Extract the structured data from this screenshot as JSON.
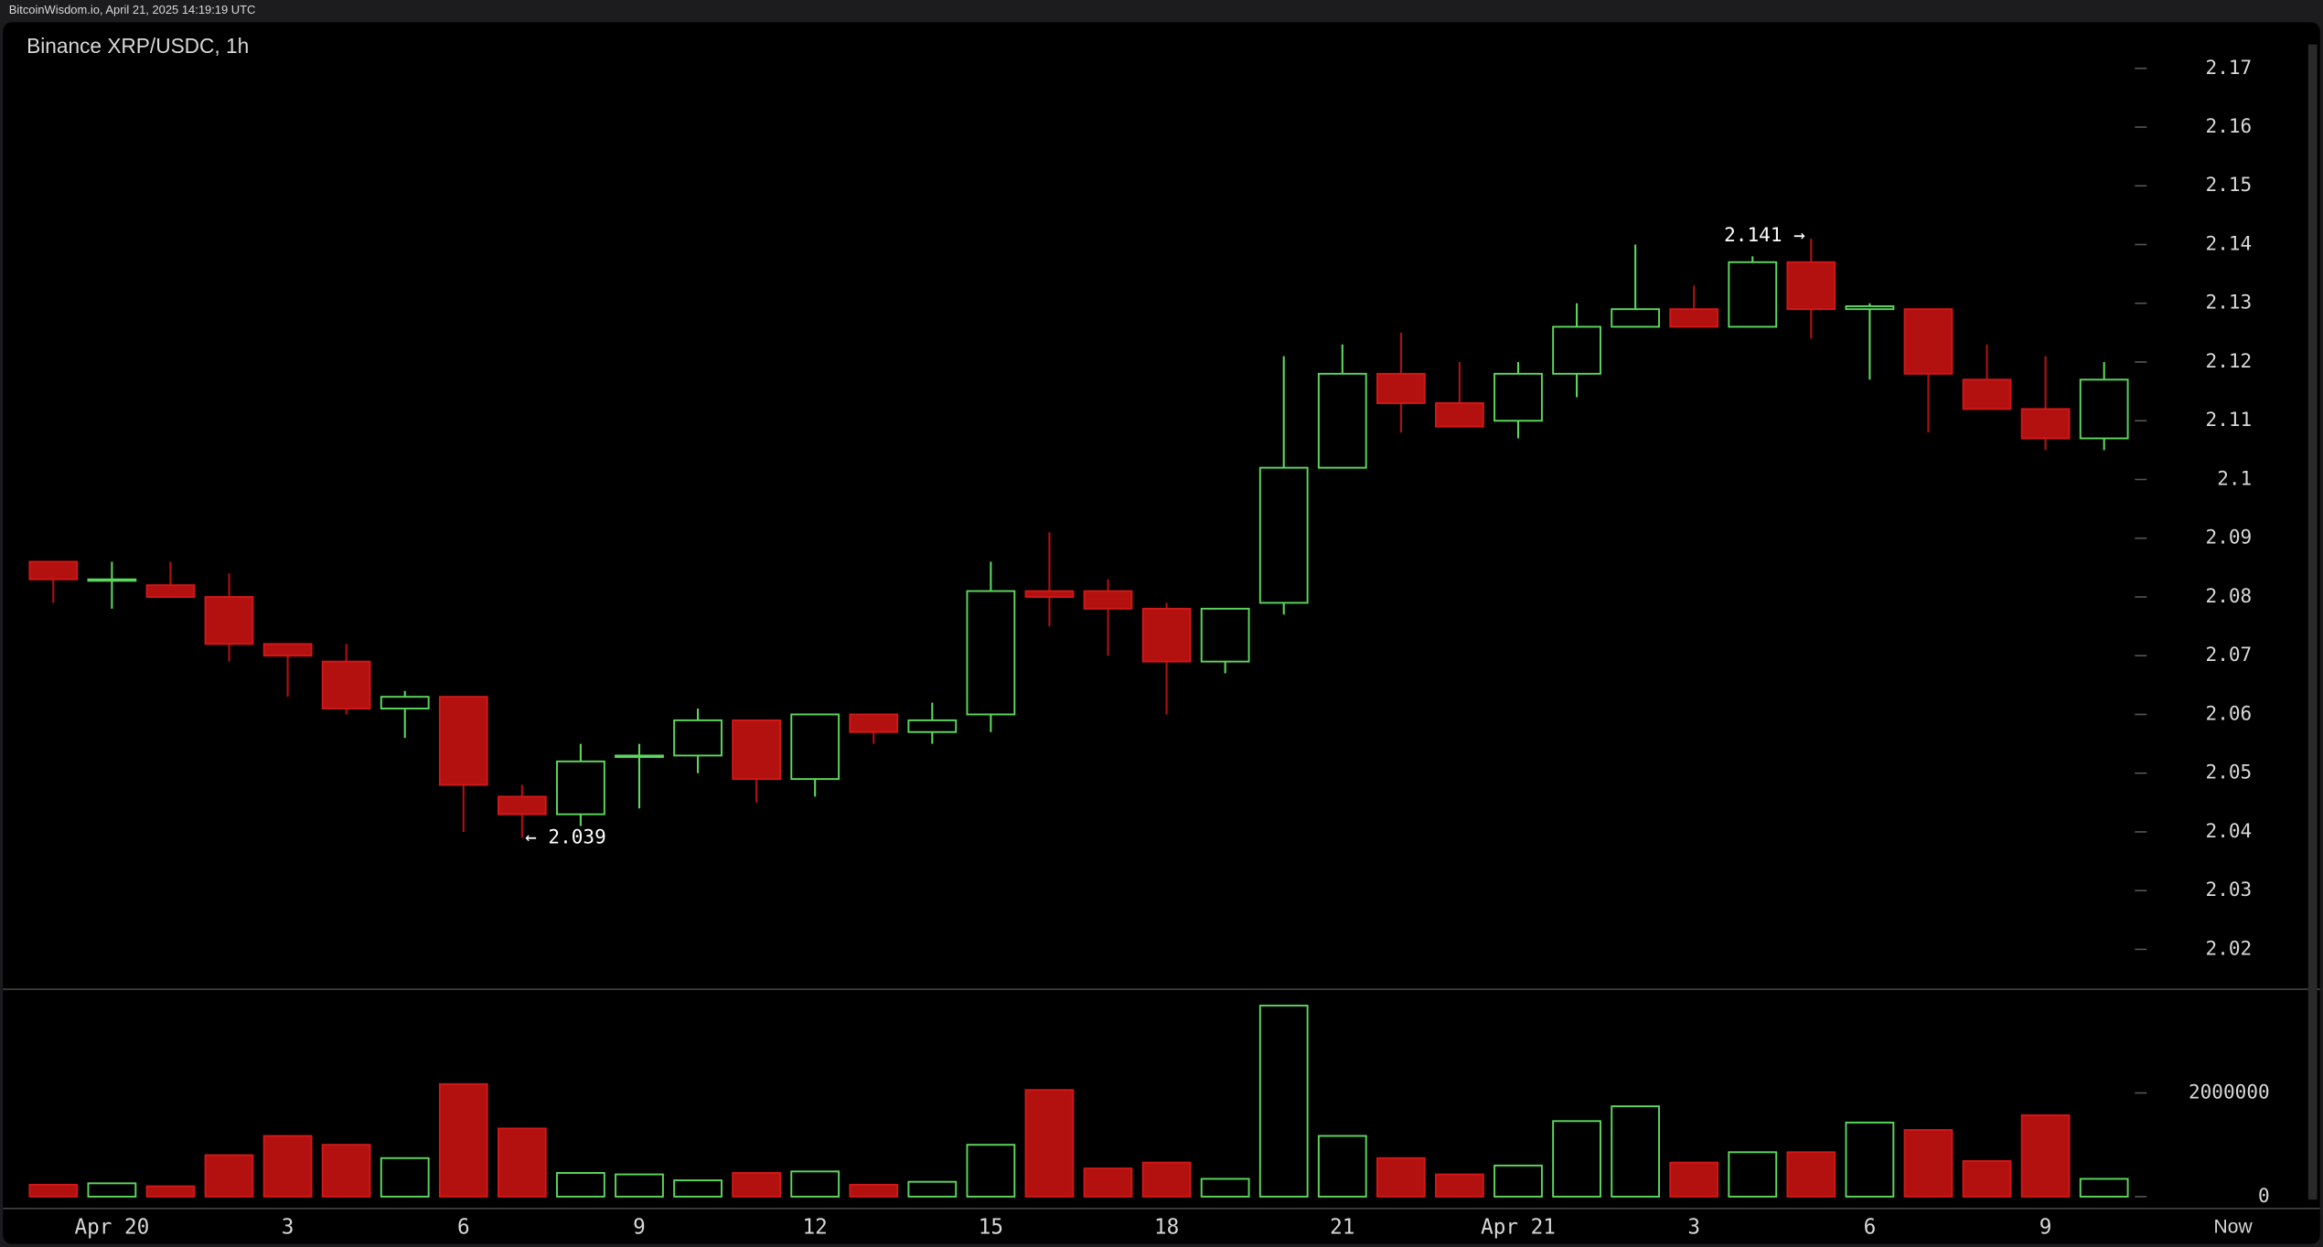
{
  "header": {
    "source": "BitcoinWisdom.io, April 21, 2025 14:19:19 UTC"
  },
  "chart_data": {
    "type": "candlestick",
    "title": "Binance XRP/USDC, 1h",
    "categories": [
      null,
      "Apr 20",
      null,
      null,
      "3",
      null,
      null,
      "6",
      null,
      null,
      "9",
      null,
      null,
      "12",
      null,
      null,
      "15",
      null,
      null,
      "18",
      null,
      null,
      "21",
      null,
      null,
      "Apr 21",
      null,
      null,
      "3",
      null,
      null,
      "6",
      null,
      null,
      "9",
      null
    ],
    "now_label": "Now",
    "open": [
      2.086,
      2.083,
      2.082,
      2.08,
      2.072,
      2.069,
      2.061,
      2.063,
      2.046,
      2.043,
      2.053,
      2.053,
      2.059,
      2.049,
      2.06,
      2.057,
      2.06,
      2.081,
      2.081,
      2.078,
      2.069,
      2.079,
      2.102,
      2.118,
      2.113,
      2.11,
      2.118,
      2.126,
      2.129,
      2.126,
      2.137,
      2.129,
      2.129,
      2.117,
      2.112,
      2.107
    ],
    "high": [
      2.086,
      2.086,
      2.086,
      2.084,
      2.072,
      2.072,
      2.064,
      2.063,
      2.048,
      2.055,
      2.055,
      2.061,
      2.059,
      2.06,
      2.06,
      2.062,
      2.086,
      2.091,
      2.083,
      2.079,
      2.078,
      2.121,
      2.123,
      2.125,
      2.12,
      2.12,
      2.13,
      2.14,
      2.133,
      2.138,
      2.141,
      2.13,
      2.129,
      2.123,
      2.121,
      2.12
    ],
    "low": [
      2.079,
      2.078,
      2.08,
      2.069,
      2.063,
      2.06,
      2.056,
      2.04,
      2.039,
      2.041,
      2.044,
      2.05,
      2.045,
      2.046,
      2.055,
      2.055,
      2.057,
      2.075,
      2.07,
      2.06,
      2.067,
      2.077,
      2.102,
      2.108,
      2.109,
      2.107,
      2.114,
      2.126,
      2.126,
      2.126,
      2.124,
      2.117,
      2.108,
      2.112,
      2.105,
      2.105
    ],
    "close": [
      2.083,
      2.083,
      2.08,
      2.072,
      2.07,
      2.061,
      2.063,
      2.048,
      2.043,
      2.052,
      2.053,
      2.059,
      2.049,
      2.06,
      2.057,
      2.059,
      2.081,
      2.08,
      2.078,
      2.069,
      2.078,
      2.102,
      2.118,
      2.113,
      2.109,
      2.118,
      2.126,
      2.129,
      2.126,
      2.137,
      2.129,
      2.1295,
      2.118,
      2.112,
      2.107,
      2.117
    ],
    "volume": [
      229000,
      257000,
      200000,
      800000,
      1171000,
      1000000,
      743000,
      2171000,
      1314000,
      457000,
      429000,
      314000,
      457000,
      486000,
      229000,
      286000,
      1000000,
      2057000,
      543000,
      657000,
      343000,
      3686000,
      1171000,
      743000,
      429000,
      600000,
      1457000,
      1743000,
      657000,
      857000,
      857000,
      1429000,
      1286000,
      686000,
      1571000,
      343000
    ],
    "annotations": [
      "← 2.039",
      "2.141 →"
    ],
    "ylim": [
      2.0132,
      2.1776
    ],
    "yticks": [
      2.02,
      2.03,
      2.04,
      2.05,
      2.06,
      2.07,
      2.08,
      2.09,
      2.1,
      2.11,
      2.12,
      2.13,
      2.14,
      2.15,
      2.16,
      2.17
    ],
    "volume_ylim": [
      0,
      4000000
    ],
    "volume_ticks": [
      0,
      2000000
    ],
    "up_color": "#5cd65c",
    "down_color": "#b31010"
  }
}
